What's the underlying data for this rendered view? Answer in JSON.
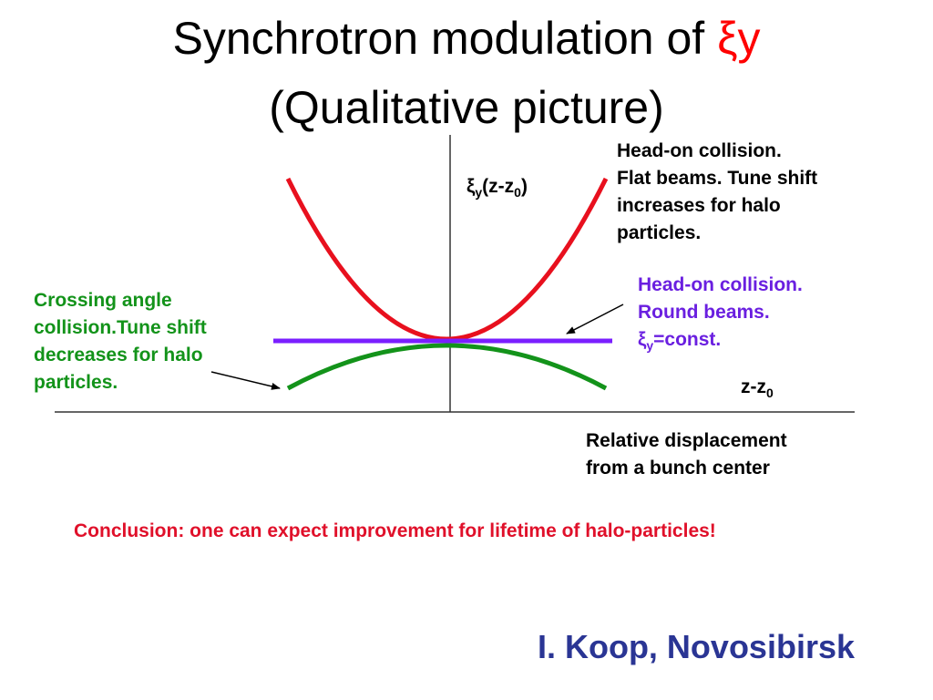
{
  "title": {
    "line1_prefix": "Synchrotron modulation of ",
    "line1_symbol": "ξy",
    "line2": "(Qualitative picture)"
  },
  "axes": {
    "y_label": {
      "base": "ξ",
      "sub1": "y",
      "mid": "(z-z",
      "sub2": "0",
      "end": ")"
    },
    "x_label": {
      "base": "z-z",
      "sub": "0"
    }
  },
  "annotations": {
    "head_on_flat": [
      "Head-on collision.",
      "Flat beams. Tune shift",
      "increases for halo",
      "particles."
    ],
    "head_on_round": {
      "line1": "Head-on collision.",
      "line2": "Round beams.",
      "line3_base": "ξ",
      "line3_sub": "y",
      "line3_end": "=const."
    },
    "crossing": [
      "Crossing angle",
      "collision.Tune shift",
      "decreases for halo",
      "particles."
    ],
    "relative_displacement": [
      "Relative displacement",
      "from a bunch center"
    ]
  },
  "conclusion": "Conclusion: one can expect improvement for lifetime of halo-particles!",
  "author": "I. Koop, Novosibirsk",
  "colors": {
    "flat_curve": "#e8101e",
    "round_line": "#7a1fff",
    "crossing_curve": "#13931a",
    "conclusion_text": "#e0102a",
    "author_text": "#2a3594"
  }
}
